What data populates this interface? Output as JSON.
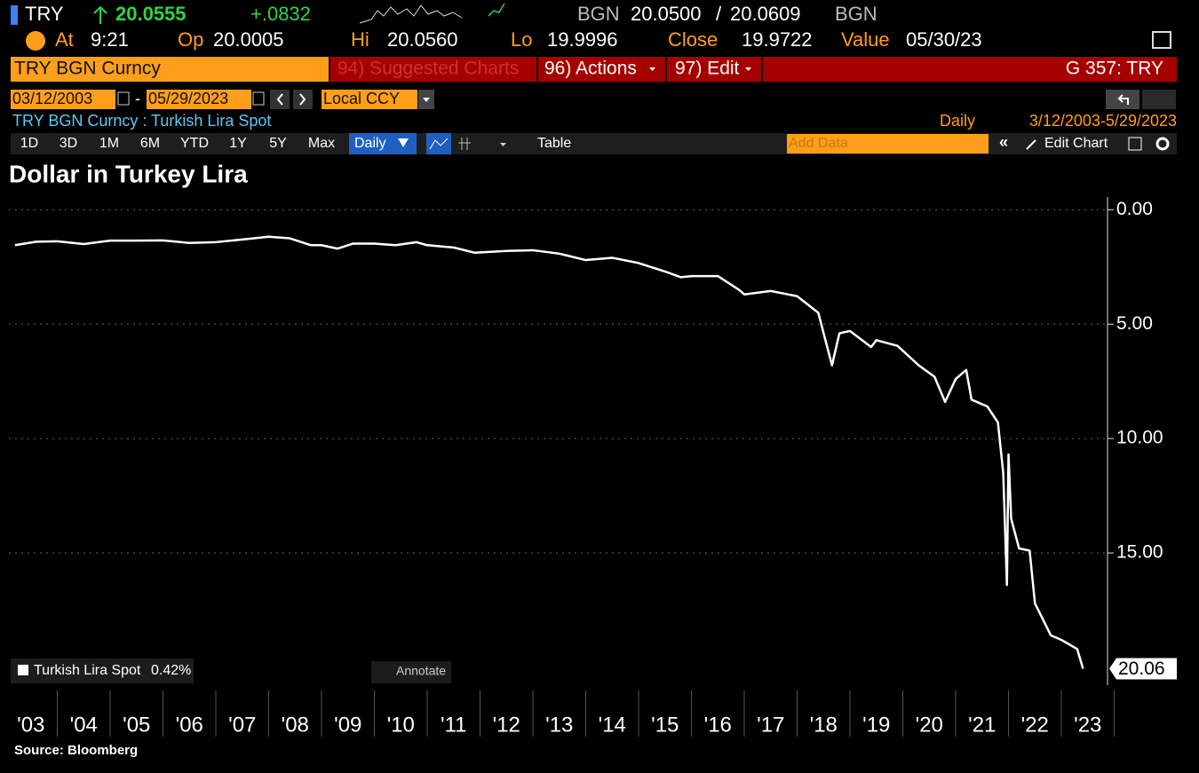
{
  "header": {
    "ticker": "TRY",
    "last": "20.0555",
    "change": "+.0832",
    "source": "BGN",
    "bid": "20.0500",
    "bid_ask_separator": "/",
    "ask": "20.0609",
    "source2": "BGN",
    "at_label": "At",
    "time": "9:21",
    "open_label": "Op",
    "open": "20.0005",
    "hi_label": "Hi",
    "hi": "20.0560",
    "lo_label": "Lo",
    "lo": "19.9996",
    "close_label": "Close",
    "close": "19.9722",
    "value_label": "Value",
    "value_date": "05/30/23"
  },
  "toolbar": {
    "security": "TRY BGN Curncy",
    "suggested": "94) Suggested Charts",
    "actions": "96) Actions",
    "edit": "97) Edit",
    "function": "G 357: TRY",
    "start_date": "03/12/2003",
    "date_separator": "-",
    "end_date": "05/29/2023",
    "currency": "Local CCY",
    "description": "TRY BGN Curncy : Turkish Lira Spot",
    "period": "Daily",
    "range": "3/12/2003-5/29/2023",
    "buttons": [
      "1D",
      "3D",
      "1M",
      "6M",
      "YTD",
      "1Y",
      "5Y",
      "Max"
    ],
    "daily": "Daily",
    "table": "Table",
    "add_data": "Add Data",
    "collapse": "«",
    "edit_chart": "Edit Chart"
  },
  "chart_data": {
    "type": "line",
    "title": "Dollar in Turkey Lira",
    "invert_y": true,
    "grid": true,
    "xlim": [
      2003,
      2023.84
    ],
    "xticks": [
      {
        "value": 2003.5,
        "label": "'03"
      },
      {
        "value": 2004.5,
        "label": "'04"
      },
      {
        "value": 2005.5,
        "label": "'05"
      },
      {
        "value": 2006.5,
        "label": "'06"
      },
      {
        "value": 2007.5,
        "label": "'07"
      },
      {
        "value": 2008.5,
        "label": "'08"
      },
      {
        "value": 2009.5,
        "label": "'09"
      },
      {
        "value": 2010.5,
        "label": "'10"
      },
      {
        "value": 2011.5,
        "label": "'11"
      },
      {
        "value": 2012.5,
        "label": "'12"
      },
      {
        "value": 2013.5,
        "label": "'13"
      },
      {
        "value": 2014.5,
        "label": "'14"
      },
      {
        "value": 2015.5,
        "label": "'15"
      },
      {
        "value": 2016.5,
        "label": "'16"
      },
      {
        "value": 2017.5,
        "label": "'17"
      },
      {
        "value": 2018.5,
        "label": "'18"
      },
      {
        "value": 2019.5,
        "label": "'19"
      },
      {
        "value": 2020.5,
        "label": "'20"
      },
      {
        "value": 2021.5,
        "label": "'21"
      },
      {
        "value": 2022.5,
        "label": "'22"
      },
      {
        "value": 2023.5,
        "label": "'23"
      }
    ],
    "ylim": [
      -0.4,
      20.7
    ],
    "yticks": [
      {
        "value": 0,
        "label": "0.00"
      },
      {
        "value": 5,
        "label": "5.00"
      },
      {
        "value": 10,
        "label": "10.00"
      },
      {
        "value": 15,
        "label": "15.00"
      }
    ],
    "series": [
      {
        "name": "Turkish Lira Spot",
        "color": "#ffffff",
        "x": [
          2003.2,
          2003.6,
          2004.0,
          2004.5,
          2005.0,
          2005.5,
          2006.0,
          2006.5,
          2007.0,
          2007.5,
          2008.0,
          2008.4,
          2008.8,
          2009.0,
          2009.3,
          2009.6,
          2010.0,
          2010.4,
          2010.8,
          2011.0,
          2011.5,
          2011.9,
          2012.5,
          2013.0,
          2013.5,
          2014.0,
          2014.5,
          2015.0,
          2015.5,
          2015.8,
          2016.0,
          2016.5,
          2016.9,
          2017.0,
          2017.5,
          2018.0,
          2018.4,
          2018.66,
          2018.8,
          2019.0,
          2019.4,
          2019.5,
          2019.9,
          2020.3,
          2020.6,
          2020.8,
          2021.0,
          2021.2,
          2021.3,
          2021.6,
          2021.8,
          2021.9,
          2021.97,
          2022.0,
          2022.05,
          2022.2,
          2022.4,
          2022.5,
          2022.8,
          2023.0,
          2023.3,
          2023.41
        ],
        "values": [
          1.55,
          1.4,
          1.38,
          1.5,
          1.35,
          1.35,
          1.34,
          1.45,
          1.42,
          1.3,
          1.18,
          1.25,
          1.55,
          1.55,
          1.7,
          1.48,
          1.48,
          1.55,
          1.42,
          1.55,
          1.65,
          1.88,
          1.8,
          1.77,
          1.92,
          2.2,
          2.1,
          2.33,
          2.7,
          2.95,
          2.9,
          2.9,
          3.5,
          3.7,
          3.55,
          3.78,
          4.5,
          6.8,
          5.4,
          5.3,
          6.0,
          5.7,
          5.95,
          6.8,
          7.3,
          8.4,
          7.4,
          7.0,
          8.3,
          8.6,
          9.3,
          11.5,
          16.4,
          10.7,
          13.5,
          14.8,
          14.9,
          17.2,
          18.6,
          18.8,
          19.2,
          20.06
        ],
        "change": "0.42%",
        "last_label": "20.06"
      }
    ],
    "annotate": "Annotate",
    "source": "Source: Bloomberg"
  }
}
